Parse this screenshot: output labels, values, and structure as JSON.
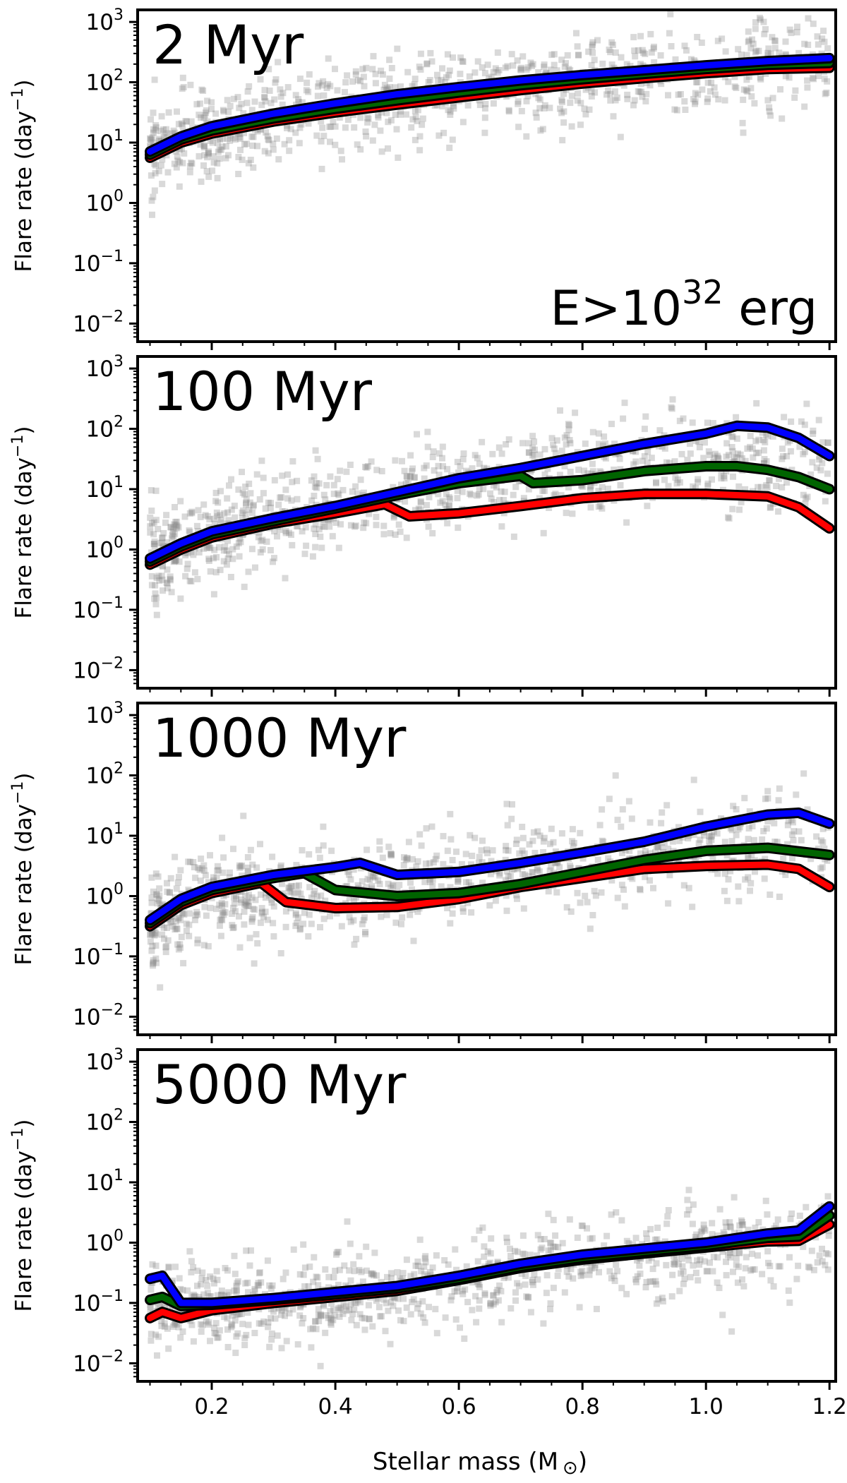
{
  "chart_data": {
    "type": "scatter",
    "shared_xlabel": "Stellar mass (M",
    "shared_xlabel_suffix": ")",
    "solar_symbol": "⊙",
    "x_ticks": [
      0.2,
      0.4,
      0.6,
      0.8,
      1.0,
      1.2
    ],
    "x_tick_labels": [
      "0.2",
      "0.4",
      "0.6",
      "0.8",
      "1.0",
      "1.2"
    ],
    "xlim": [
      0.08,
      1.21
    ],
    "series_colors": {
      "blue": "#0000ff",
      "green": "#006400",
      "red": "#ff0000",
      "outline": "#000000",
      "scatter": "#8a8a8a"
    },
    "panels": [
      {
        "title": "2 Myr",
        "annotation": "E>10",
        "annotation_exp": "32",
        "annotation_unit": " erg",
        "ylabel": "Flare rate (day",
        "ylabel_exp": "−1",
        "ylabel_close": ")",
        "yscale": "log",
        "ylim_log10": [
          -2.3,
          3.2
        ],
        "y_tick_base": "10",
        "y_tick_exps": [
          "−2",
          "−1",
          "0",
          "1",
          "2",
          "3"
        ],
        "scatter_trend": {
          "x": [
            0.1,
            0.2,
            0.4,
            0.6,
            0.8,
            1.0,
            1.2
          ],
          "log10_y": [
            0.85,
            1.2,
            1.6,
            1.85,
            2.05,
            2.2,
            2.3
          ]
        },
        "scatter_spread": 0.38,
        "series": [
          {
            "name": "blue",
            "x": [
              0.1,
              0.15,
              0.2,
              0.3,
              0.4,
              0.5,
              0.6,
              0.7,
              0.8,
              0.9,
              1.0,
              1.1,
              1.2
            ],
            "log10_y": [
              0.85,
              1.1,
              1.27,
              1.48,
              1.65,
              1.8,
              1.92,
              2.03,
              2.12,
              2.2,
              2.28,
              2.35,
              2.4
            ]
          },
          {
            "name": "green",
            "x": [
              0.1,
              0.15,
              0.2,
              0.3,
              0.4,
              0.5,
              0.6,
              0.7,
              0.8,
              0.9,
              1.0,
              1.1,
              1.2
            ],
            "log10_y": [
              0.8,
              1.05,
              1.2,
              1.4,
              1.56,
              1.7,
              1.83,
              1.95,
              2.05,
              2.14,
              2.22,
              2.29,
              2.32
            ]
          },
          {
            "name": "red",
            "x": [
              0.1,
              0.15,
              0.2,
              0.3,
              0.4,
              0.5,
              0.6,
              0.7,
              0.8,
              0.9,
              1.0,
              1.1,
              1.2
            ],
            "log10_y": [
              0.75,
              1.0,
              1.15,
              1.35,
              1.5,
              1.63,
              1.75,
              1.87,
              1.98,
              2.07,
              2.15,
              2.22,
              2.24
            ]
          }
        ]
      },
      {
        "title": "100 Myr",
        "ylabel": "Flare rate (day",
        "ylabel_exp": "−1",
        "ylabel_close": ")",
        "yscale": "log",
        "ylim_log10": [
          -2.3,
          3.2
        ],
        "y_tick_base": "10",
        "y_tick_exps": [
          "−2",
          "−1",
          "0",
          "1",
          "2",
          "3"
        ],
        "scatter_trend": {
          "x": [
            0.1,
            0.2,
            0.4,
            0.6,
            0.8,
            1.0,
            1.2
          ],
          "log10_y": [
            -0.1,
            0.3,
            0.7,
            1.05,
            1.4,
            1.5,
            1.5
          ]
        },
        "scatter_spread": 0.38,
        "series": [
          {
            "name": "blue",
            "x": [
              0.1,
              0.15,
              0.2,
              0.3,
              0.4,
              0.5,
              0.6,
              0.7,
              0.8,
              0.9,
              1.0,
              1.05,
              1.1,
              1.15,
              1.2
            ],
            "log10_y": [
              -0.15,
              0.1,
              0.3,
              0.52,
              0.72,
              0.95,
              1.18,
              1.35,
              1.55,
              1.75,
              1.92,
              2.05,
              2.02,
              1.85,
              1.55
            ]
          },
          {
            "name": "green",
            "x": [
              0.1,
              0.15,
              0.2,
              0.3,
              0.4,
              0.5,
              0.6,
              0.7,
              0.72,
              0.8,
              0.9,
              1.0,
              1.05,
              1.1,
              1.15,
              1.2
            ],
            "log10_y": [
              -0.2,
              0.05,
              0.25,
              0.47,
              0.68,
              0.9,
              1.1,
              1.22,
              1.1,
              1.15,
              1.3,
              1.38,
              1.38,
              1.32,
              1.2,
              1.0
            ]
          },
          {
            "name": "red",
            "x": [
              0.1,
              0.15,
              0.2,
              0.3,
              0.4,
              0.48,
              0.52,
              0.6,
              0.7,
              0.8,
              0.9,
              1.0,
              1.1,
              1.15,
              1.2
            ],
            "log10_y": [
              -0.25,
              0.0,
              0.2,
              0.43,
              0.6,
              0.75,
              0.55,
              0.6,
              0.72,
              0.85,
              0.92,
              0.92,
              0.88,
              0.7,
              0.35
            ]
          }
        ]
      },
      {
        "title": "1000 Myr",
        "ylabel": "Flare rate (day",
        "ylabel_exp": "−1",
        "ylabel_close": ")",
        "yscale": "log",
        "ylim_log10": [
          -2.3,
          3.2
        ],
        "y_tick_base": "10",
        "y_tick_exps": [
          "−2",
          "−1",
          "0",
          "1",
          "2",
          "3"
        ],
        "scatter_trend": {
          "x": [
            0.1,
            0.2,
            0.4,
            0.6,
            0.8,
            1.0,
            1.2
          ],
          "log10_y": [
            -0.5,
            0.0,
            0.1,
            0.3,
            0.6,
            0.85,
            0.9
          ]
        },
        "scatter_spread": 0.38,
        "series": [
          {
            "name": "blue",
            "x": [
              0.1,
              0.15,
              0.2,
              0.3,
              0.4,
              0.44,
              0.5,
              0.6,
              0.7,
              0.8,
              0.9,
              1.0,
              1.1,
              1.15,
              1.2
            ],
            "log10_y": [
              -0.4,
              -0.05,
              0.15,
              0.35,
              0.48,
              0.55,
              0.35,
              0.4,
              0.55,
              0.72,
              0.9,
              1.15,
              1.35,
              1.38,
              1.2
            ]
          },
          {
            "name": "green",
            "x": [
              0.1,
              0.15,
              0.2,
              0.3,
              0.35,
              0.4,
              0.5,
              0.6,
              0.7,
              0.8,
              0.9,
              1.0,
              1.1,
              1.2
            ],
            "log10_y": [
              -0.45,
              -0.1,
              0.1,
              0.3,
              0.38,
              0.1,
              0.0,
              0.05,
              0.2,
              0.4,
              0.6,
              0.75,
              0.8,
              0.68
            ]
          },
          {
            "name": "red",
            "x": [
              0.1,
              0.15,
              0.2,
              0.28,
              0.32,
              0.4,
              0.5,
              0.6,
              0.7,
              0.8,
              0.9,
              1.0,
              1.1,
              1.15,
              1.2
            ],
            "log10_y": [
              -0.5,
              -0.15,
              0.05,
              0.22,
              -0.1,
              -0.2,
              -0.18,
              -0.05,
              0.15,
              0.3,
              0.45,
              0.5,
              0.52,
              0.45,
              0.15
            ]
          }
        ]
      },
      {
        "title": "5000 Myr",
        "ylabel": "Flare rate (day",
        "ylabel_exp": "−1",
        "ylabel_close": ")",
        "yscale": "log",
        "ylim_log10": [
          -2.3,
          3.2
        ],
        "y_tick_base": "10",
        "y_tick_exps": [
          "−2",
          "−1",
          "0",
          "1",
          "2",
          "3"
        ],
        "scatter_trend": {
          "x": [
            0.1,
            0.2,
            0.4,
            0.6,
            0.8,
            1.0,
            1.2
          ],
          "log10_y": [
            -1.1,
            -1.05,
            -0.9,
            -0.65,
            -0.3,
            -0.1,
            0.1
          ]
        },
        "scatter_spread": 0.38,
        "series": [
          {
            "name": "blue",
            "x": [
              0.1,
              0.12,
              0.15,
              0.2,
              0.3,
              0.4,
              0.5,
              0.6,
              0.7,
              0.8,
              0.9,
              1.0,
              1.1,
              1.15,
              1.2
            ],
            "log10_y": [
              -0.6,
              -0.55,
              -1.0,
              -1.0,
              -0.92,
              -0.82,
              -0.72,
              -0.55,
              -0.35,
              -0.2,
              -0.1,
              0.0,
              0.15,
              0.2,
              0.6
            ]
          },
          {
            "name": "green",
            "x": [
              0.1,
              0.12,
              0.15,
              0.2,
              0.3,
              0.4,
              0.5,
              0.6,
              0.7,
              0.8,
              0.9,
              1.0,
              1.1,
              1.15,
              1.2
            ],
            "log10_y": [
              -0.95,
              -0.9,
              -1.05,
              -1.03,
              -0.95,
              -0.86,
              -0.76,
              -0.6,
              -0.4,
              -0.25,
              -0.15,
              -0.05,
              0.08,
              0.1,
              0.45
            ]
          },
          {
            "name": "red",
            "x": [
              0.1,
              0.12,
              0.15,
              0.2,
              0.3,
              0.4,
              0.5,
              0.6,
              0.7,
              0.8,
              0.9,
              1.0,
              1.1,
              1.15,
              1.2
            ],
            "log10_y": [
              -1.25,
              -1.15,
              -1.25,
              -1.12,
              -1.0,
              -0.9,
              -0.8,
              -0.62,
              -0.42,
              -0.28,
              -0.18,
              -0.08,
              0.02,
              0.03,
              0.3
            ]
          }
        ]
      }
    ]
  }
}
